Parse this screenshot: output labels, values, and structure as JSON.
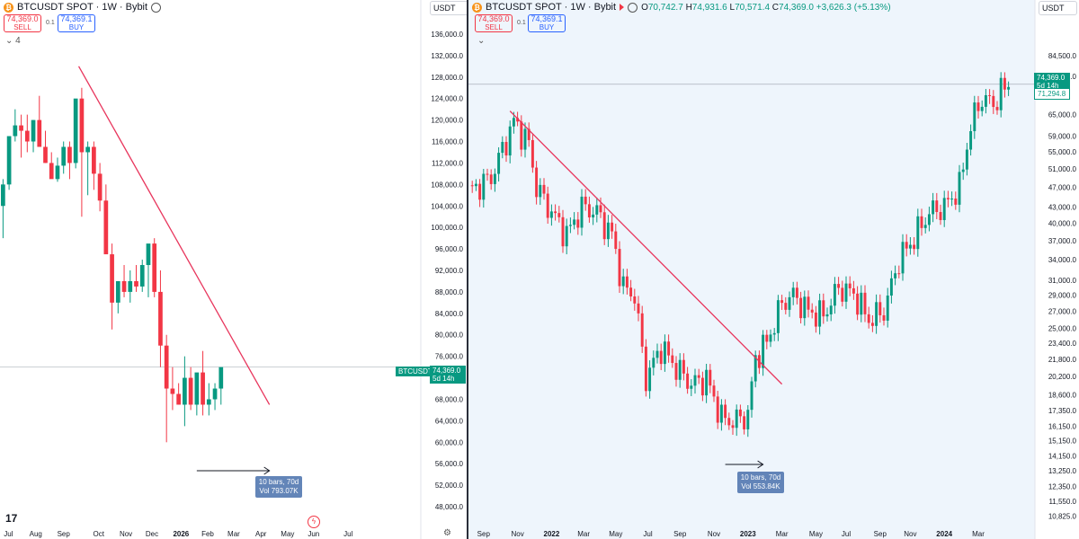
{
  "left": {
    "title": "BTCUSDT SPOT · 1W · Bybit",
    "sell_price": "74,369.0",
    "sell_label": "SELL",
    "qty": "0.1",
    "buy_price": "74,369.1",
    "buy_label": "BUY",
    "indicators_count": "4",
    "currency": "USDT",
    "symbol_tag": "BTCUSDT",
    "last_price": "74,369.0",
    "countdown": "5d 14h",
    "measure_bars": "10 bars, 70d",
    "measure_vol": "Vol 793.07K"
  },
  "right": {
    "title": "BTCUSDT SPOT · 1W · Bybit",
    "sell_price": "74,369.0",
    "sell_label": "SELL",
    "qty": "0.1",
    "buy_price": "74,369.1",
    "buy_label": "BUY",
    "ohlc": {
      "o_label": "O",
      "o": "70,742.7",
      "h_label": "H",
      "h": "74,931.6",
      "l_label": "L",
      "l": "70,571.4",
      "c_label": "C",
      "c": "74,369.0",
      "change": "+3,626.3 (+5.13%)"
    },
    "currency": "USDT",
    "last_price": "74,369.0",
    "countdown": "5d 14h",
    "ma_price": "71,294.8",
    "measure_bars": "10 bars, 70d",
    "measure_vol": "Vol 553.84K"
  },
  "colors": {
    "up": "#089981",
    "down": "#f23645",
    "trend": "#e8365d",
    "bg_right": "#eef5fc"
  },
  "chart_data": [
    {
      "type": "candlestick",
      "title": "BTCUSDT SPOT · 1W · Bybit",
      "y_ticks": [
        "136,000.0",
        "132,000.0",
        "128,000.0",
        "124,000.0",
        "120,000.0",
        "116,000.0",
        "112,000.0",
        "108,000.0",
        "104,000.0",
        "100,000.0",
        "96,000.0",
        "92,000.0",
        "88,000.0",
        "84,000.0",
        "80,000.0",
        "76,000.0",
        "72,000.0",
        "68,000.0",
        "64,000.0",
        "60,000.0",
        "56,000.0",
        "52,000.0",
        "48,000.0"
      ],
      "y_tick_values": [
        136000,
        132000,
        128000,
        124000,
        120000,
        116000,
        112000,
        108000,
        104000,
        100000,
        96000,
        92000,
        88000,
        84000,
        80000,
        76000,
        72000,
        68000,
        64000,
        60000,
        56000,
        52000,
        48000
      ],
      "x_ticks": [
        "Jul",
        "Aug",
        "Sep",
        "Oct",
        "Nov",
        "Dec",
        "2026",
        "Feb",
        "Mar",
        "Apr",
        "May",
        "Jun",
        "Jul"
      ],
      "x_tick_week": [
        0.9,
        5.4,
        10.0,
        15.8,
        20.3,
        24.6,
        29.4,
        33.8,
        38.1,
        42.6,
        47.0,
        51.3,
        57.0
      ],
      "ylim": [
        45000,
        139000
      ],
      "xlim": [
        -0.5,
        69
      ],
      "candles_ohlc": [
        [
          104000,
          109000,
          98000,
          108000
        ],
        [
          108000,
          112000,
          107000,
          117000
        ],
        [
          117000,
          122000,
          116000,
          119000
        ],
        [
          119000,
          121000,
          113000,
          118000
        ],
        [
          118000,
          121000,
          114000,
          116000
        ],
        [
          116000,
          120000,
          114000,
          120000
        ],
        [
          120000,
          124500,
          117000,
          115000
        ],
        [
          115000,
          118000,
          112000,
          112000
        ],
        [
          112000,
          114000,
          110000,
          109000
        ],
        [
          109000,
          113000,
          108500,
          111500
        ],
        [
          111500,
          116000,
          110000,
          115000
        ],
        [
          115000,
          116000,
          109000,
          112000
        ],
        [
          112000,
          119000,
          111000,
          124000
        ],
        [
          124000,
          126000,
          102000,
          114000
        ],
        [
          114000,
          116000,
          106000,
          115000
        ],
        [
          115000,
          116000,
          107000,
          110000
        ],
        [
          110000,
          112000,
          103000,
          105000
        ],
        [
          105000,
          108000,
          98000,
          95000
        ],
        [
          95000,
          97000,
          81000,
          86000
        ],
        [
          86000,
          90000,
          84000,
          90000
        ],
        [
          90000,
          93000,
          87000,
          88000
        ],
        [
          88000,
          92000,
          86000,
          90000
        ],
        [
          90000,
          93000,
          88000,
          89000
        ],
        [
          89000,
          94000,
          88000,
          93000
        ],
        [
          93000,
          96000,
          87000,
          97000
        ],
        [
          97000,
          98000,
          87000,
          88000
        ],
        [
          88000,
          92000,
          74000,
          78000
        ],
        [
          78000,
          80000,
          60000,
          70000
        ],
        [
          70000,
          74000,
          66000,
          69000
        ],
        [
          69000,
          71000,
          67000,
          67000
        ],
        [
          67000,
          76000,
          63000,
          72000
        ],
        [
          72000,
          74000,
          66000,
          67000
        ],
        [
          67000,
          71000,
          65000,
          73000
        ],
        [
          73000,
          77000,
          65000,
          67000
        ],
        [
          67000,
          71000,
          65000,
          68000
        ],
        [
          68000,
          71000,
          66000,
          70000
        ],
        [
          70000,
          73000,
          67000,
          74000
        ]
      ],
      "annotations": {
        "trend_line": [
          [
            12.5,
            130000
          ],
          [
            44,
            67000
          ]
        ],
        "measure_arrow": [
          32,
          44
        ]
      }
    },
    {
      "type": "candlestick",
      "title": "BTCUSDT SPOT · 1W · Bybit",
      "y_scale": "log",
      "y_ticks": [
        "84,500.0",
        "77,000.0",
        "71,294.8",
        "65,000.0",
        "59,000.0",
        "55,000.0",
        "51,000.0",
        "47,000.0",
        "43,000.0",
        "40,000.0",
        "37,000.0",
        "34,000.0",
        "31,000.0",
        "29,000.0",
        "27,000.0",
        "25,000.0",
        "23,400.0",
        "21,800.0",
        "20,200.0",
        "18,600.0",
        "17,350.0",
        "16,150.0",
        "15,150.0",
        "14,150.0",
        "13,250.0",
        "12,350.0",
        "11,550.0",
        "10,825.0"
      ],
      "y_tick_values": [
        84500,
        77000,
        71294.8,
        65000,
        59000,
        55000,
        51000,
        47000,
        43000,
        40000,
        37000,
        34000,
        31000,
        29000,
        27000,
        25000,
        23400,
        21800,
        20200,
        18600,
        17350,
        16150,
        15150,
        14150,
        13250,
        12350,
        11550,
        10825
      ],
      "x_ticks": [
        "Sep",
        "Nov",
        "2022",
        "Mar",
        "May",
        "Jul",
        "Sep",
        "Nov",
        "2023",
        "Mar",
        "May",
        "Jul",
        "Sep",
        "Nov",
        "2024",
        "Mar"
      ],
      "x_tick_week": [
        4,
        13,
        22,
        30.5,
        39,
        47.5,
        56,
        65,
        74,
        83,
        92,
        100,
        109,
        117,
        126,
        135
      ],
      "ylim": [
        10500,
        100000
      ],
      "xlim": [
        0,
        150
      ],
      "series": [
        {
          "name": "BTCUSDT",
          "points": [
            [
              0,
              46000
            ],
            [
              6,
              49000
            ],
            [
              12,
              63000
            ],
            [
              16,
              57000
            ],
            [
              18,
              47000
            ],
            [
              22,
              42000
            ],
            [
              26,
              38000
            ],
            [
              30,
              43000
            ],
            [
              34,
              42000
            ],
            [
              38,
              38000
            ],
            [
              41,
              30000
            ],
            [
              44,
              29000
            ],
            [
              47,
              20000
            ],
            [
              51,
              23000
            ],
            [
              55,
              21000
            ],
            [
              59,
              19500
            ],
            [
              63,
              20000
            ],
            [
              67,
              16800
            ],
            [
              70,
              16500
            ],
            [
              74,
              17000
            ],
            [
              76,
              22000
            ],
            [
              79,
              23500
            ],
            [
              83,
              28000
            ],
            [
              86,
              29000
            ],
            [
              90,
              27000
            ],
            [
              94,
              26500
            ],
            [
              98,
              30000
            ],
            [
              102,
              29200
            ],
            [
              106,
              26000
            ],
            [
              110,
              27000
            ],
            [
              114,
              34000
            ],
            [
              118,
              37500
            ],
            [
              122,
              42000
            ],
            [
              126,
              43000
            ],
            [
              130,
              47000
            ],
            [
              133,
              62000
            ],
            [
              136,
              70000
            ],
            [
              139,
              68000
            ],
            [
              141,
              72000
            ],
            [
              143,
              74369
            ]
          ]
        }
      ],
      "annotations": {
        "trend_line": [
          [
            11,
            66000
          ],
          [
            83,
            19500
          ]
        ],
        "measure_arrow": [
          68,
          78
        ]
      }
    }
  ]
}
